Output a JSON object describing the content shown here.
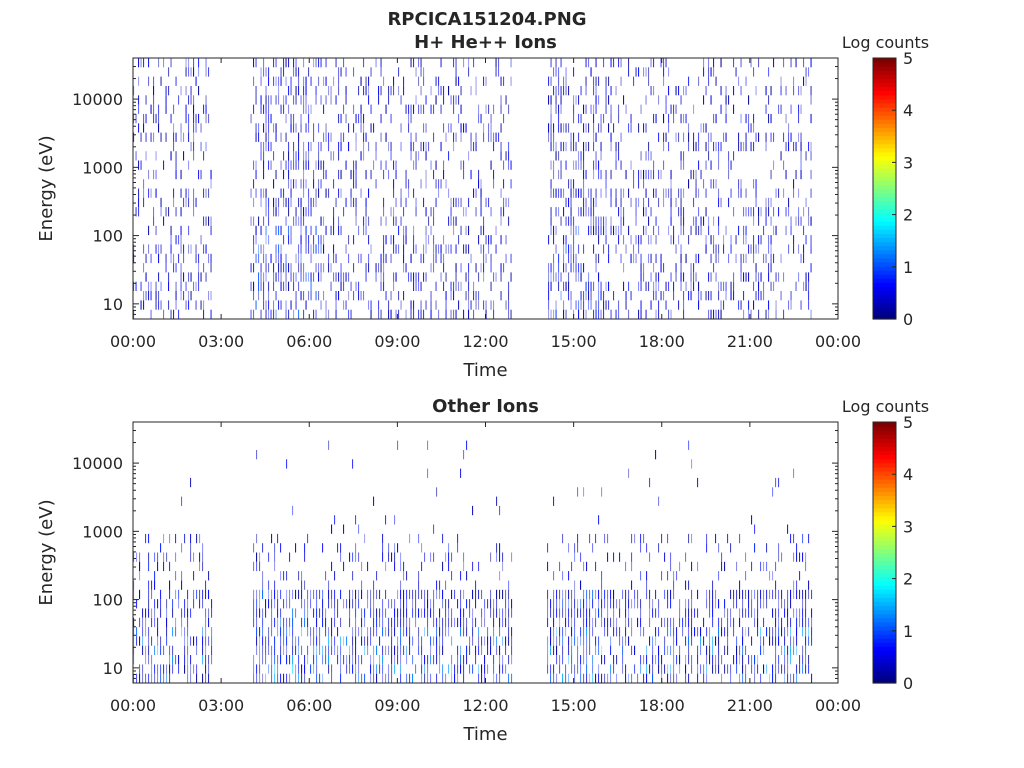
{
  "figure": {
    "title": "RPCICA151204.PNG"
  },
  "chart_data": [
    {
      "type": "heatmap",
      "title": "H+ He++ Ions",
      "xlabel": "Time",
      "ylabel": "Energy (eV)",
      "yscale": "log",
      "xlim": [
        "00:00",
        "00:00"
      ],
      "ylim": [
        6,
        40000
      ],
      "x_tick_labels": [
        "00:00",
        "03:00",
        "06:00",
        "09:00",
        "12:00",
        "15:00",
        "18:00",
        "21:00",
        "00:00"
      ],
      "y_tick_labels": [
        "10",
        "100",
        "1000",
        "10000"
      ],
      "data_gaps": [
        [
          "02:40",
          "04:00"
        ],
        [
          "12:55",
          "14:05"
        ],
        [
          "23:05",
          "00:00"
        ]
      ],
      "colorbar": {
        "label": "Log counts",
        "range": [
          0,
          5
        ],
        "tick_labels": [
          "0",
          "1",
          "2",
          "3",
          "4",
          "5"
        ],
        "colormap": "jet"
      },
      "grid": false
    },
    {
      "type": "heatmap",
      "title": "Other Ions",
      "xlabel": "Time",
      "ylabel": "Energy (eV)",
      "yscale": "log",
      "xlim": [
        "00:00",
        "00:00"
      ],
      "ylim": [
        6,
        40000
      ],
      "x_tick_labels": [
        "00:00",
        "03:00",
        "06:00",
        "09:00",
        "12:00",
        "15:00",
        "18:00",
        "21:00",
        "00:00"
      ],
      "y_tick_labels": [
        "10",
        "100",
        "1000",
        "10000"
      ],
      "data_gaps": [
        [
          "02:40",
          "04:00"
        ],
        [
          "12:55",
          "14:05"
        ],
        [
          "23:05",
          "00:00"
        ]
      ],
      "colorbar": {
        "label": "Log counts",
        "range": [
          0,
          5
        ],
        "tick_labels": [
          "0",
          "1",
          "2",
          "3",
          "4",
          "5"
        ],
        "colormap": "jet"
      },
      "grid": false
    }
  ]
}
